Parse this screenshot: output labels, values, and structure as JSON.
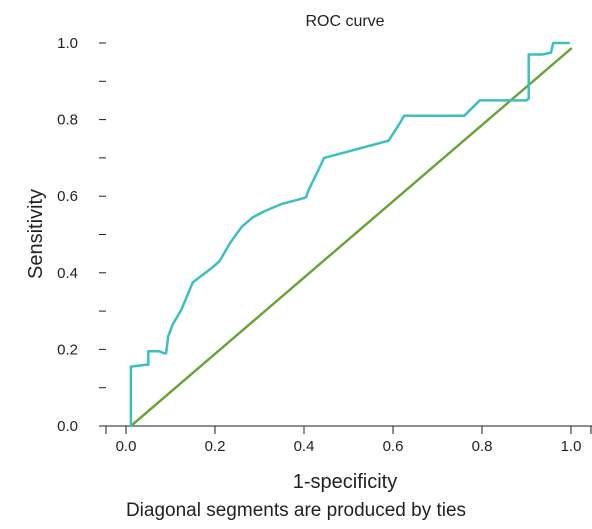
{
  "colors": {
    "roc_curve": "#3cbfbf",
    "reference_line": "#6aa53c",
    "axis": "#231f20",
    "text": "#231f20"
  },
  "caption": "Diagonal segments are produced by ties",
  "chart_data": {
    "type": "line",
    "title": "ROC curve",
    "xlabel": "1-specificity",
    "ylabel": "Sensitivity",
    "xlim": [
      0.0,
      1.0
    ],
    "ylim": [
      0.0,
      1.0
    ],
    "xticks": [
      "0.0",
      "0.2",
      "0.4",
      "0.6",
      "0.8",
      "1.0"
    ],
    "yticks": [
      "0.0",
      "0.2",
      "0.4",
      "0.6",
      "0.8",
      "1.0"
    ],
    "grid": false,
    "series": [
      {
        "role": "roc",
        "color": "#3cbfbf",
        "x": [
          0.011,
          0.011,
          0.045,
          0.05,
          0.05,
          0.075,
          0.085,
          0.09,
          0.095,
          0.105,
          0.125,
          0.15,
          0.195,
          0.21,
          0.235,
          0.26,
          0.285,
          0.31,
          0.35,
          0.4,
          0.405,
          0.41,
          0.435,
          0.445,
          0.59,
          0.615,
          0.625,
          0.76,
          0.795,
          0.9,
          0.905,
          0.905,
          0.935,
          0.955,
          0.96,
          0.995
        ],
        "y": [
          0.0,
          0.155,
          0.16,
          0.16,
          0.195,
          0.195,
          0.19,
          0.19,
          0.235,
          0.265,
          0.305,
          0.375,
          0.415,
          0.43,
          0.48,
          0.52,
          0.545,
          0.56,
          0.58,
          0.595,
          0.598,
          0.615,
          0.675,
          0.7,
          0.745,
          0.79,
          0.81,
          0.81,
          0.85,
          0.85,
          0.855,
          0.97,
          0.97,
          0.975,
          1.0,
          1.0
        ]
      },
      {
        "role": "reference",
        "color": "#6aa53c",
        "x": [
          0.011,
          1.0
        ],
        "y": [
          0.0,
          0.985
        ]
      }
    ]
  }
}
